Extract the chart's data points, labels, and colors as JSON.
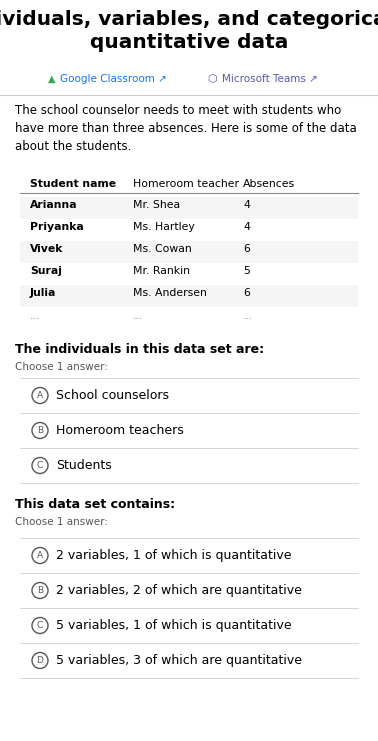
{
  "title": "Individuals, variables, and categorical &\nquantitative data",
  "title_fontsize": 16,
  "bg_color": "#ffffff",
  "google_classroom_text": "Google Classroom",
  "google_classroom_color": "#1a73e8",
  "google_icon_color": "#34a853",
  "microsoft_teams_text": "Microsoft Teams",
  "microsoft_teams_color": "#5558af",
  "paragraph": "The school counselor needs to meet with students who\nhave more than three absences. Here is some of the data\nabout the students.",
  "table_headers": [
    "Student name",
    "Homeroom teacher",
    "Absences"
  ],
  "table_data": [
    [
      "Arianna",
      "Mr. Shea",
      "4"
    ],
    [
      "Priyanka",
      "Ms. Hartley",
      "4"
    ],
    [
      "Vivek",
      "Ms. Cowan",
      "6"
    ],
    [
      "Suraj",
      "Mr. Rankin",
      "5"
    ],
    [
      "Julia",
      "Ms. Andersen",
      "6"
    ]
  ],
  "q1_bold": "The individuals in this data set are:",
  "q1_sub": "Choose 1 answer:",
  "q1_options": [
    "School counselors",
    "Homeroom teachers",
    "Students"
  ],
  "q1_labels": [
    "A",
    "B",
    "C"
  ],
  "q2_bold": "This data set contains:",
  "q2_sub": "Choose 1 answer:",
  "q2_options": [
    "2 variables, 1 of which is quantitative",
    "2 variables, 2 of which are quantitative",
    "5 variables, 1 of which is quantitative",
    "5 variables, 3 of which are quantitative"
  ],
  "q2_labels": [
    "A",
    "B",
    "C",
    "D"
  ],
  "separator_color": "#cccccc",
  "text_color": "#000000",
  "light_gray": "#f5f5f5",
  "circle_color": "#555555"
}
